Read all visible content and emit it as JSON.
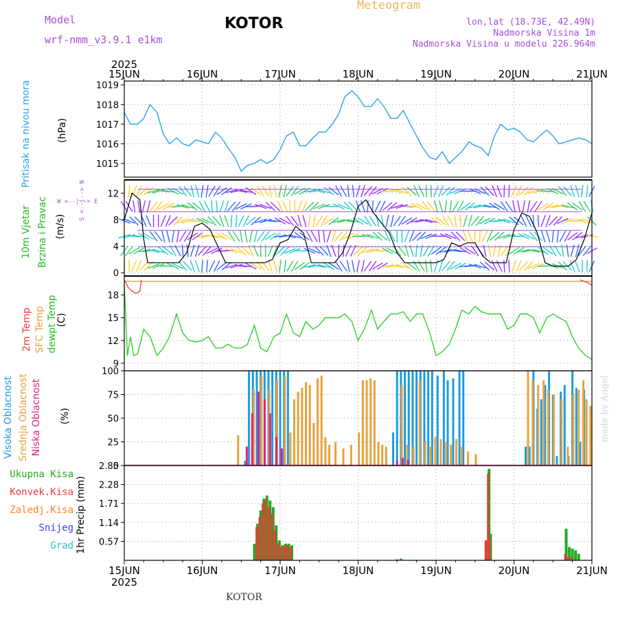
{
  "header": {
    "model_label": "Model",
    "model_name": "wrf-nmm_v3.9.1 e1km",
    "title": "KOTOR",
    "meteogram": "Meteogram",
    "lonlat": "lon,lat (18.73E, 42.49N)",
    "elevation": "Nadmorska Visina 1m",
    "model_elevation": "Nadmorska Visina u modelu 226.964m",
    "year_top": "2025",
    "year_bottom": "2025",
    "footer": "KOTOR",
    "watermark": "made by Angel"
  },
  "x_axis": {
    "ticks": [
      "15JUN",
      "16JUN",
      "17JUN",
      "18JUN",
      "19JUN",
      "20JUN",
      "21JUN"
    ],
    "range_days": [
      0,
      6
    ]
  },
  "colors": {
    "pressure": "#29a3e8",
    "temp2m": "#ee3a3a",
    "sfc": "#e6a23c",
    "dewpt": "#22cc22",
    "high_cloud": "#1a9be6",
    "mid_cloud": "#e6a23c",
    "low_cloud": "#e0207a",
    "total_precip": "#22aa22",
    "conv_precip": "#ee3a3a",
    "frozen_precip": "#ff7f27",
    "snow": "#4040ff",
    "hail": "#20c0c0",
    "wind_speed": "#000000",
    "gust": "#ee3a3a"
  },
  "panels": {
    "pressure": {
      "label": "Pritisak na nivou mora",
      "unit": "(hPa)",
      "yticks": [
        "1015",
        "1016",
        "1017",
        "1018",
        "1019"
      ]
    },
    "wind": {
      "label1": "10m Vjetar",
      "label2": "Brzina i Pravac",
      "unit": "(m/s)",
      "compass": "W <--|--> E",
      "compass_v": "S <--|--> N",
      "yticks": [
        "0",
        "4",
        "8",
        "12"
      ]
    },
    "temp": {
      "label1": "2m Temp",
      "label2": "SFC Temp",
      "label3": "dewpt Temp",
      "unit": "(C)",
      "yticks": [
        "9",
        "12",
        "15",
        "18"
      ]
    },
    "cloud": {
      "label1": "Visoka Oblacnost",
      "label2": "Srednja Oblacnost",
      "label3": "Niska Oblacnost",
      "unit": "(%)",
      "yticks": [
        "0",
        "25",
        "50",
        "75",
        "100"
      ]
    },
    "precip": {
      "unit": "1hr Precip (mm)",
      "legend": [
        "Ukupna Kisa",
        "Konvek.Kisa",
        "Zaledj.Kisa",
        "Snijeg",
        "Grad"
      ],
      "yticks": [
        "0.57",
        "1.14",
        "1.71",
        "2.28",
        "2.85"
      ]
    }
  },
  "chart_data": [
    {
      "type": "line",
      "title": "Pritisak na nivou mora",
      "ylabel": "(hPa)",
      "ylim": [
        1014.3,
        1019.2
      ],
      "grid": true,
      "series": [
        {
          "name": "Pritisak na nivou mora",
          "x": [
            0,
            0.08,
            0.17,
            0.25,
            0.33,
            0.42,
            0.5,
            0.58,
            0.67,
            0.75,
            0.83,
            0.92,
            1.0,
            1.08,
            1.17,
            1.25,
            1.33,
            1.42,
            1.5,
            1.58,
            1.67,
            1.75,
            1.83,
            1.92,
            2.0,
            2.08,
            2.17,
            2.25,
            2.33,
            2.42,
            2.5,
            2.58,
            2.67,
            2.75,
            2.83,
            2.92,
            3.0,
            3.08,
            3.17,
            3.25,
            3.33,
            3.42,
            3.5,
            3.58,
            3.67,
            3.75,
            3.83,
            3.92,
            4.0,
            4.08,
            4.17,
            4.25,
            4.33,
            4.42,
            4.5,
            4.58,
            4.67,
            4.75,
            4.83,
            4.92,
            5.0,
            5.08,
            5.17,
            5.25,
            5.33,
            5.42,
            5.5,
            5.58,
            5.67,
            5.75,
            5.83,
            5.92,
            6.0
          ],
          "values": [
            1017.6,
            1017.0,
            1017.0,
            1017.3,
            1018.0,
            1017.6,
            1016.5,
            1016.0,
            1016.3,
            1016.0,
            1015.9,
            1016.2,
            1016.1,
            1016.0,
            1016.6,
            1016.3,
            1015.8,
            1015.3,
            1014.6,
            1014.9,
            1015.0,
            1015.2,
            1015.0,
            1015.2,
            1015.7,
            1016.4,
            1016.6,
            1015.9,
            1015.9,
            1016.3,
            1016.6,
            1016.6,
            1017.0,
            1017.5,
            1018.4,
            1018.7,
            1018.4,
            1017.9,
            1017.9,
            1018.3,
            1017.9,
            1017.3,
            1017.3,
            1017.7,
            1017.0,
            1016.4,
            1015.8,
            1015.3,
            1015.2,
            1015.6,
            1015.0,
            1015.3,
            1015.6,
            1016.1,
            1015.9,
            1015.8,
            1015.4,
            1016.4,
            1017.0,
            1016.7,
            1016.8,
            1016.6,
            1016.2,
            1016.1,
            1016.4,
            1016.7,
            1016.4,
            1016.0,
            1016.1,
            1016.2,
            1016.3,
            1016.2,
            1016.0
          ]
        }
      ]
    },
    {
      "type": "line",
      "title": "10m Vjetar Brzina i Pravac",
      "ylabel": "(m/s)",
      "ylim": [
        -0.5,
        14
      ],
      "grid": true,
      "series": [
        {
          "name": "10m Vjetar",
          "x": [
            0,
            0.1,
            0.2,
            0.25,
            0.3,
            0.4,
            0.5,
            0.6,
            0.7,
            0.8,
            0.9,
            1.0,
            1.1,
            1.2,
            1.3,
            1.4,
            1.5,
            1.6,
            1.7,
            1.8,
            1.9,
            2.0,
            2.1,
            2.2,
            2.3,
            2.4,
            2.5,
            2.6,
            2.7,
            2.8,
            2.9,
            3.0,
            3.1,
            3.2,
            3.3,
            3.4,
            3.5,
            3.6,
            3.7,
            3.8,
            3.9,
            4.0,
            4.1,
            4.2,
            4.3,
            4.4,
            4.5,
            4.6,
            4.7,
            4.8,
            4.9,
            5.0,
            5.1,
            5.2,
            5.3,
            5.4,
            5.5,
            5.6,
            5.7,
            5.8,
            5.9,
            6.0
          ],
          "values": [
            8,
            12,
            11,
            5,
            1.5,
            1.5,
            1.5,
            1.5,
            1.5,
            3,
            7,
            7.5,
            6.5,
            4,
            1.5,
            1.5,
            1.5,
            1.5,
            1.5,
            1.5,
            2,
            4.5,
            5,
            7,
            6,
            1.5,
            1.5,
            1.5,
            1.5,
            3,
            6,
            10,
            11,
            9,
            7.5,
            6,
            3,
            1.5,
            1.5,
            1.5,
            1.5,
            1.5,
            2,
            4.5,
            4,
            4.5,
            4.5,
            2.5,
            1.5,
            1.5,
            1.5,
            6.5,
            9,
            8.5,
            6,
            1.5,
            1,
            1,
            1,
            2,
            5,
            9
          ]
        }
      ]
    },
    {
      "type": "line",
      "title": "2m Temp / SFC Temp / dewpt Temp",
      "ylabel": "(C)",
      "ylim": [
        8,
        20.5
      ],
      "grid": true,
      "series": [
        {
          "name": "2m Temp",
          "x": [
            0,
            0.05,
            0.1,
            0.15,
            0.2,
            0.22,
            5.85,
            5.9,
            5.95,
            6.0
          ],
          "values": [
            20,
            19,
            18.5,
            18.2,
            18.5,
            20,
            20,
            19.8,
            19.6,
            19.3
          ]
        },
        {
          "name": "SFC Temp",
          "x": [
            0,
            6
          ],
          "values": [
            19.8,
            19.8
          ]
        },
        {
          "name": "dewpt Temp",
          "x": [
            0,
            0.04,
            0.08,
            0.12,
            0.17,
            0.25,
            0.33,
            0.42,
            0.5,
            0.58,
            0.67,
            0.75,
            0.83,
            0.92,
            1.0,
            1.08,
            1.17,
            1.25,
            1.33,
            1.42,
            1.5,
            1.58,
            1.67,
            1.75,
            1.83,
            1.92,
            2.0,
            2.08,
            2.17,
            2.25,
            2.33,
            2.42,
            2.5,
            2.58,
            2.67,
            2.75,
            2.83,
            2.92,
            3.0,
            3.08,
            3.17,
            3.25,
            3.33,
            3.42,
            3.5,
            3.58,
            3.67,
            3.75,
            3.83,
            3.92,
            4.0,
            4.08,
            4.17,
            4.25,
            4.33,
            4.42,
            4.5,
            4.58,
            4.67,
            4.75,
            4.83,
            4.92,
            5.0,
            5.08,
            5.17,
            5.25,
            5.33,
            5.42,
            5.5,
            5.58,
            5.67,
            5.75,
            5.83,
            5.92,
            6.0
          ],
          "values": [
            19.5,
            10,
            12.5,
            10,
            10.2,
            13.5,
            12.5,
            10,
            11,
            12.5,
            15.5,
            13,
            12,
            11.8,
            12,
            12.5,
            11,
            11,
            11.5,
            11,
            11,
            11.5,
            14,
            11,
            10.5,
            12.5,
            13,
            15.5,
            13,
            12.5,
            14.5,
            13.5,
            14,
            15,
            15,
            15,
            15.5,
            14.5,
            12,
            13.5,
            16,
            13.5,
            14.5,
            15.5,
            15.5,
            15.8,
            14.5,
            15.5,
            15.5,
            13,
            10,
            10.5,
            11.5,
            13.5,
            16,
            15.5,
            16.5,
            15.8,
            15.5,
            15.5,
            15.5,
            13.5,
            14,
            15.5,
            15.5,
            15,
            13,
            15,
            15.5,
            15,
            14.5,
            12.5,
            11,
            10,
            9.5
          ]
        }
      ]
    },
    {
      "type": "bar",
      "title": "Visoka / Srednja / Niska Oblacnost",
      "ylabel": "(%)",
      "ylim": [
        0,
        100
      ],
      "grid": true,
      "series": [
        {
          "name": "Visoka Oblacnost",
          "x": [
            1.55,
            1.6,
            1.65,
            1.7,
            1.75,
            1.8,
            1.85,
            1.9,
            1.95,
            2.0,
            2.05,
            2.1,
            3.45,
            3.5,
            3.55,
            3.6,
            3.65,
            3.7,
            3.75,
            3.8,
            3.85,
            3.9,
            3.95,
            4.02,
            4.1,
            4.15,
            4.22,
            4.3,
            4.35,
            5.15,
            5.2,
            5.25,
            5.3,
            5.35,
            5.4,
            5.45,
            5.5,
            5.55,
            5.6,
            5.65,
            5.7,
            5.75,
            5.8,
            5.85,
            5.9
          ],
          "values": [
            5,
            100,
            100,
            100,
            100,
            100,
            100,
            100,
            100,
            100,
            100,
            100,
            35,
            100,
            100,
            100,
            100,
            100,
            100,
            100,
            100,
            100,
            100,
            95,
            100,
            90,
            92,
            100,
            100,
            20,
            20,
            100,
            60,
            70,
            85,
            100,
            75,
            10,
            78,
            85,
            10,
            100,
            82,
            25,
            80
          ]
        },
        {
          "name": "Srednja Oblacnost",
          "x": [
            1.45,
            1.65,
            1.75,
            1.85,
            1.95,
            2.05,
            2.12,
            2.17,
            2.22,
            2.27,
            2.32,
            2.37,
            2.42,
            2.47,
            2.52,
            2.57,
            2.62,
            2.7,
            2.8,
            2.9,
            3.0,
            3.05,
            3.1,
            3.15,
            3.2,
            3.25,
            3.3,
            3.35,
            3.55,
            3.62,
            3.7,
            3.78,
            3.85,
            3.92,
            3.98,
            4.05,
            4.12,
            4.18,
            4.25,
            4.32,
            4.4,
            4.5,
            5.17,
            5.23,
            5.3,
            5.37,
            5.43,
            5.5,
            5.6,
            5.68,
            5.75,
            5.82,
            5.88,
            5.92,
            5.97
          ],
          "values": [
            32,
            80,
            95,
            80,
            90,
            95,
            35,
            70,
            78,
            82,
            88,
            85,
            45,
            92,
            95,
            30,
            22,
            25,
            18,
            22,
            35,
            90,
            90,
            92,
            90,
            25,
            22,
            20,
            85,
            22,
            20,
            90,
            25,
            20,
            30,
            28,
            25,
            22,
            28,
            20,
            15,
            12,
            100,
            90,
            85,
            90,
            80,
            75,
            70,
            20,
            75,
            80,
            90,
            70,
            63
          ]
        },
        {
          "name": "Niska Oblacnost",
          "x": [
            1.55,
            1.62,
            1.7,
            1.78,
            1.85,
            1.93,
            2.0,
            3.48,
            3.55,
            3.62
          ],
          "values": [
            20,
            55,
            78,
            70,
            55,
            30,
            18,
            5,
            8,
            6
          ]
        }
      ]
    },
    {
      "type": "bar",
      "title": "1hr Precip",
      "ylabel": "1hr Precip (mm)",
      "ylim": [
        0,
        2.85
      ],
      "grid": true,
      "series": [
        {
          "name": "Ukupna Kisa",
          "x": [
            1.67,
            1.71,
            1.75,
            1.79,
            1.83,
            1.87,
            1.91,
            1.95,
            1.99,
            2.03,
            2.07,
            2.11,
            2.15,
            3.5,
            3.55,
            4.65,
            4.68,
            4.7,
            5.67,
            5.71,
            5.75,
            5.79,
            5.83
          ],
          "values": [
            0.5,
            1.1,
            1.5,
            1.85,
            1.95,
            1.8,
            1.6,
            1.05,
            0.6,
            0.45,
            0.5,
            0.5,
            0.45,
            0.03,
            0.05,
            0.6,
            2.75,
            0.8,
            0.95,
            0.4,
            0.35,
            0.3,
            0.2
          ]
        },
        {
          "name": "Konvek.Kisa",
          "x": [
            1.71,
            1.75,
            1.79,
            1.83,
            1.87,
            1.91,
            1.95,
            1.99,
            2.03,
            2.07,
            2.11,
            2.15,
            4.65,
            4.68,
            4.7,
            5.67,
            5.71,
            5.75
          ],
          "values": [
            1.0,
            1.3,
            1.7,
            1.85,
            1.6,
            1.4,
            0.9,
            0.5,
            0.4,
            0.45,
            0.45,
            0.4,
            0.6,
            2.6,
            0.7,
            0.2,
            0.1,
            0.1
          ]
        }
      ]
    }
  ]
}
